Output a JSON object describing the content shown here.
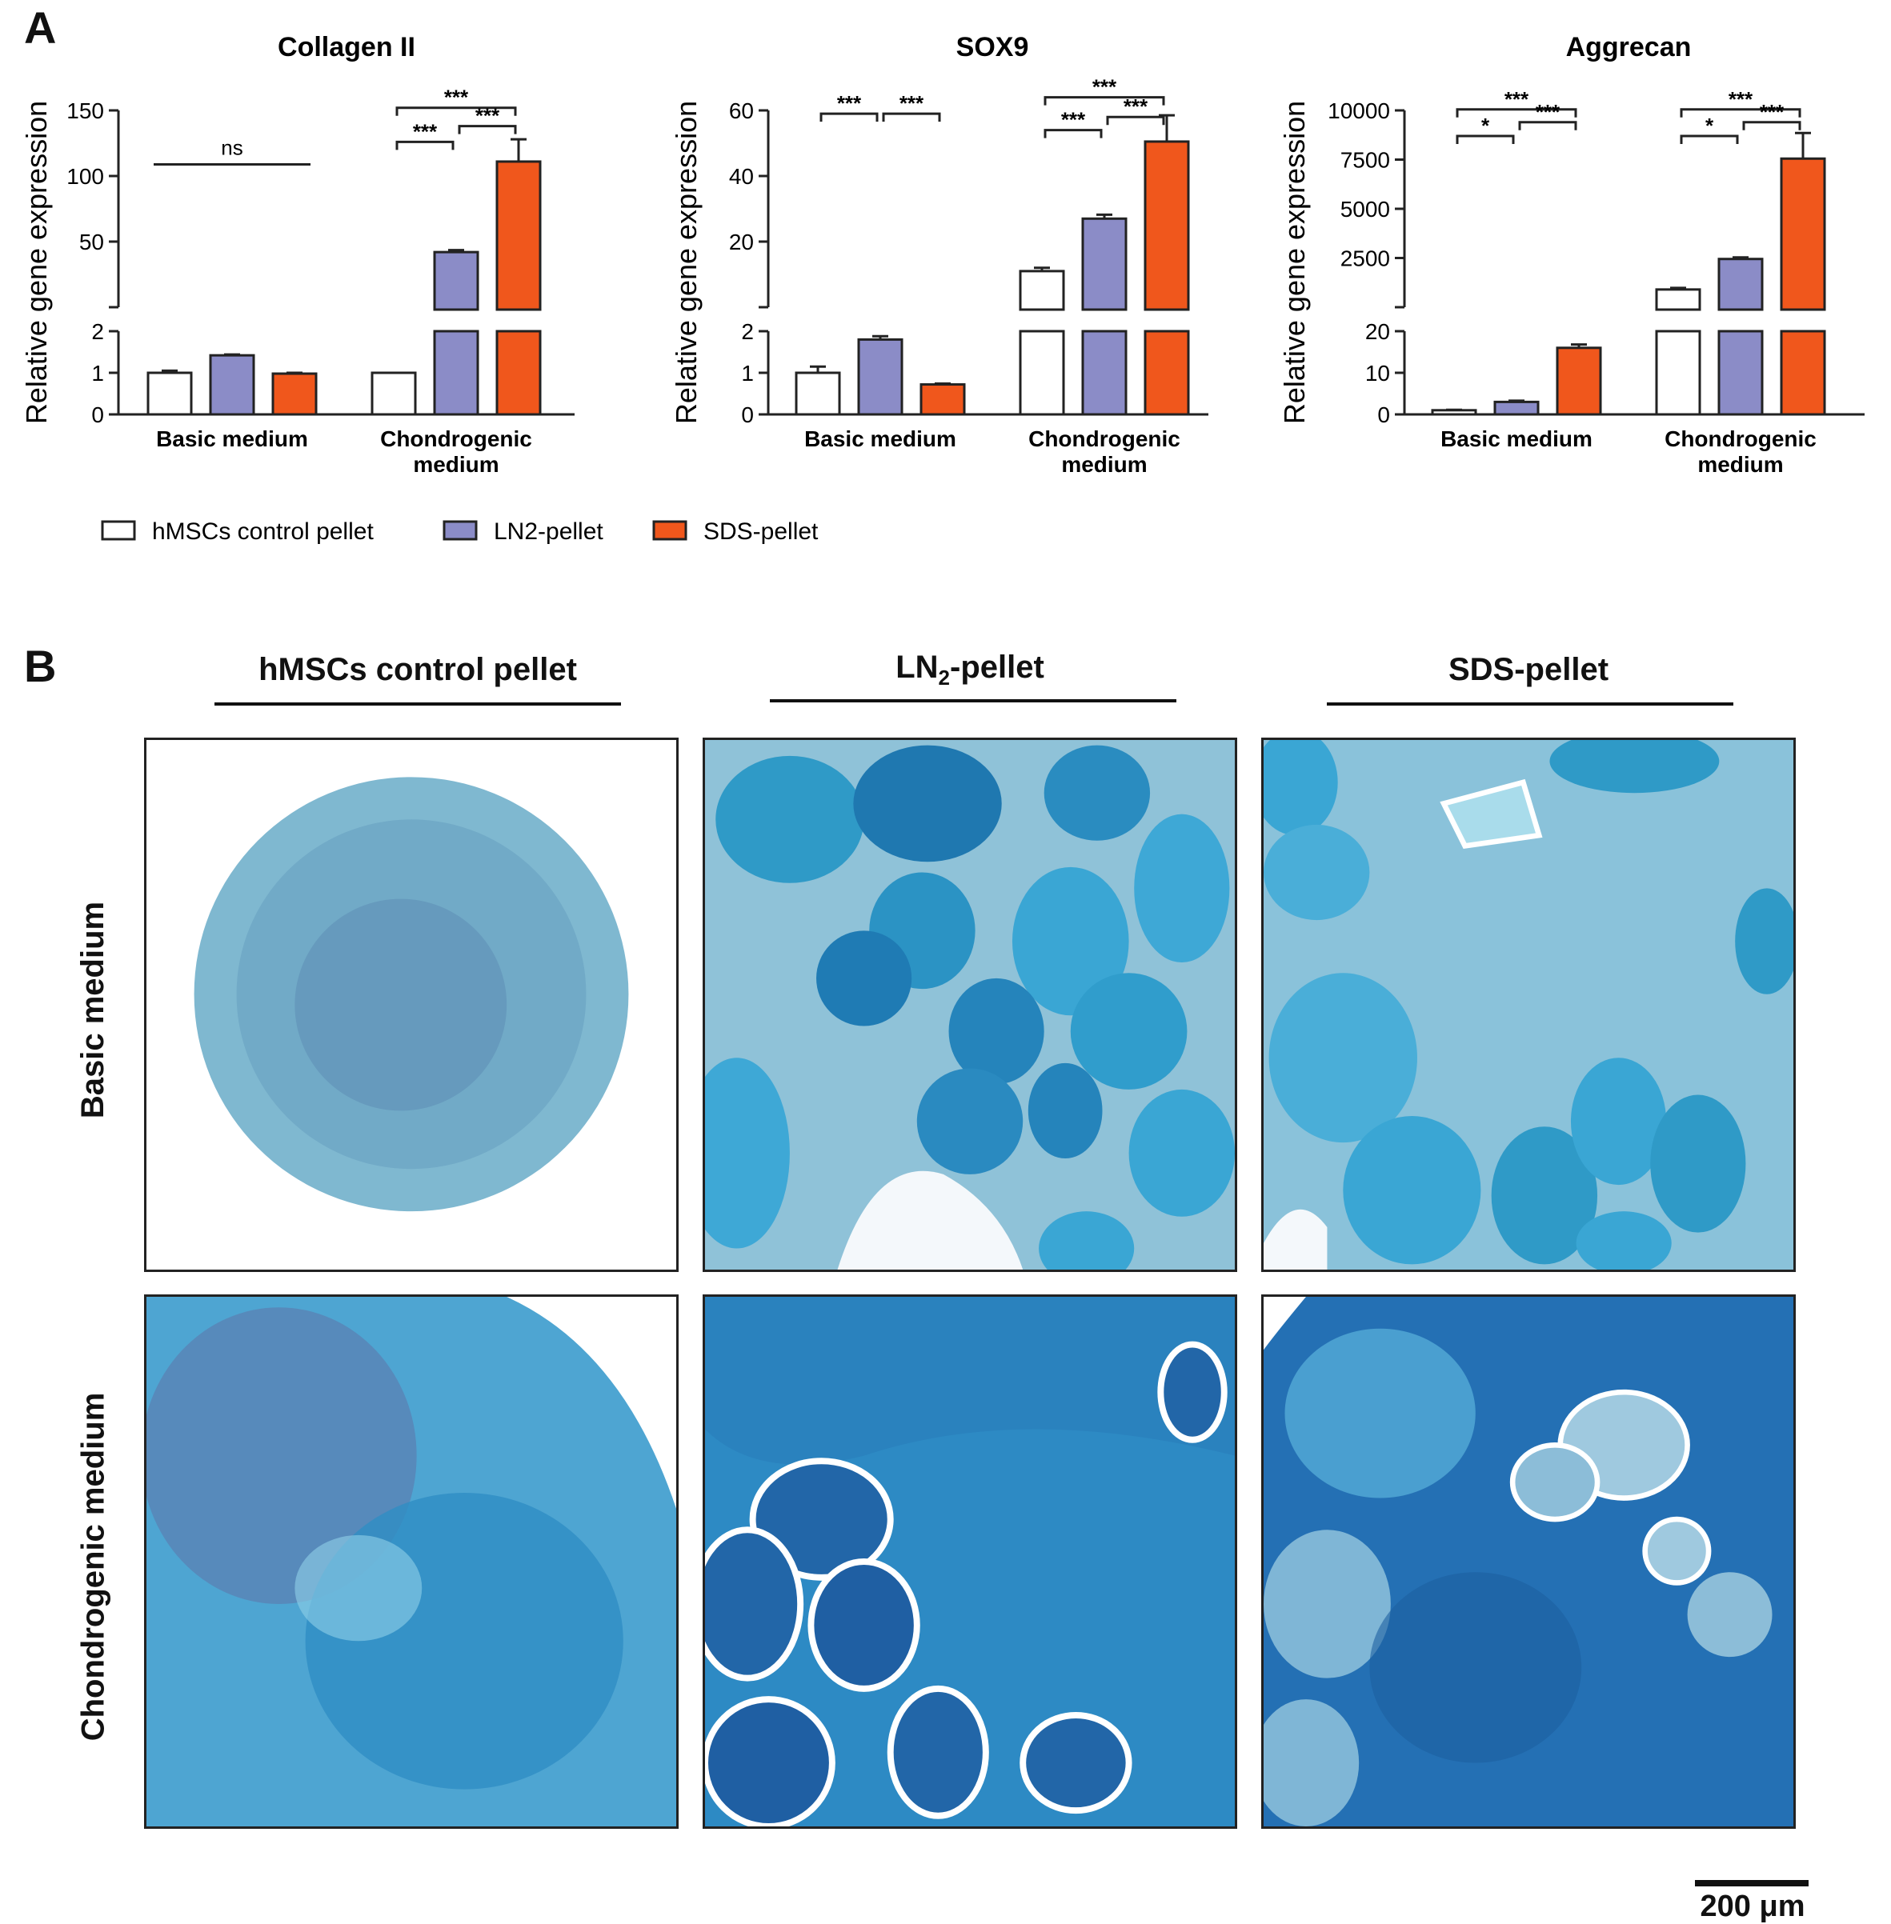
{
  "panels": {
    "a": "A",
    "b": "B"
  },
  "colors": {
    "hMSCs control pellet": "#ffffff",
    "LN2-pellet": "#8b8cc7",
    "SDS-pellet": "#f0571c"
  },
  "legend": {
    "items": [
      {
        "label": "hMSCs control pellet",
        "color": "#ffffff"
      },
      {
        "label": "LN2-pellet",
        "color": "#8b8cc7"
      },
      {
        "label": "SDS-pellet",
        "color": "#f0571c"
      }
    ]
  },
  "chart_data": [
    {
      "type": "bar",
      "title": "Collagen II",
      "ylabel": "Relative gene expression",
      "axis_break": true,
      "lower_ylim": [
        0,
        2
      ],
      "lower_ticks": [
        "0",
        "1",
        "2"
      ],
      "upper_ylim": [
        0,
        150
      ],
      "upper_ticks": [
        "50",
        "100",
        "150"
      ],
      "categories": [
        "Basic medium",
        "Chondrogenic medium"
      ],
      "series": [
        {
          "name": "hMSCs control pellet",
          "values": [
            1.0,
            1.0
          ],
          "errors": [
            0.05,
            0.0
          ]
        },
        {
          "name": "LN2-pellet",
          "values": [
            1.42,
            42
          ],
          "errors": [
            0.02,
            1.5
          ]
        },
        {
          "name": "SDS-pellet",
          "values": [
            0.98,
            111
          ],
          "errors": [
            0.02,
            17
          ]
        }
      ],
      "significance": [
        {
          "group": "Basic medium",
          "pair": [
            0,
            2
          ],
          "label": "ns",
          "style": "line",
          "y": 132
        },
        {
          "group": "Chondrogenic medium",
          "pair": [
            0,
            2
          ],
          "label": "***",
          "y": 152
        },
        {
          "group": "Chondrogenic medium",
          "pair": [
            0,
            1
          ],
          "label": "***",
          "y": 126
        },
        {
          "group": "Chondrogenic medium",
          "pair": [
            1,
            2
          ],
          "label": "***",
          "y": 138
        }
      ]
    },
    {
      "type": "bar",
      "title": "SOX9",
      "ylabel": "Relative gene expression",
      "axis_break": true,
      "lower_ylim": [
        0,
        2
      ],
      "lower_ticks": [
        "0",
        "1",
        "2"
      ],
      "upper_ylim": [
        0,
        60
      ],
      "upper_ticks": [
        "20",
        "40",
        "60"
      ],
      "categories": [
        "Basic medium",
        "Chondrogenic medium"
      ],
      "series": [
        {
          "name": "hMSCs control pellet",
          "values": [
            1.0,
            11
          ],
          "errors": [
            0.15,
            1.0
          ]
        },
        {
          "name": "LN2-pellet",
          "values": [
            1.8,
            27
          ],
          "errors": [
            0.08,
            1.2
          ]
        },
        {
          "name": "SDS-pellet",
          "values": [
            0.72,
            50.5
          ],
          "errors": [
            0.02,
            8
          ]
        }
      ],
      "significance": [
        {
          "group": "Basic medium",
          "pair": [
            0,
            1
          ],
          "label": "***",
          "y": 59
        },
        {
          "group": "Basic medium",
          "pair": [
            1,
            2
          ],
          "label": "***",
          "y": 59
        },
        {
          "group": "Chondrogenic medium",
          "pair": [
            0,
            2
          ],
          "label": "***",
          "y": 64
        },
        {
          "group": "Chondrogenic medium",
          "pair": [
            0,
            1
          ],
          "label": "***",
          "y": 54
        },
        {
          "group": "Chondrogenic medium",
          "pair": [
            1,
            2
          ],
          "label": "***",
          "y": 58
        }
      ]
    },
    {
      "type": "bar",
      "title": "Aggrecan",
      "ylabel": "Relative gene expression",
      "axis_break": true,
      "lower_ylim": [
        0,
        20
      ],
      "lower_ticks": [
        "0",
        "10",
        "20"
      ],
      "upper_ylim": [
        0,
        10000
      ],
      "upper_ticks": [
        "2500",
        "5000",
        "7500",
        "10000"
      ],
      "categories": [
        "Basic medium",
        "Chondrogenic medium"
      ],
      "series": [
        {
          "name": "hMSCs control pellet",
          "values": [
            1.0,
            900
          ],
          "errors": [
            0.1,
            80
          ]
        },
        {
          "name": "LN2-pellet",
          "values": [
            3.0,
            2450
          ],
          "errors": [
            0.3,
            80
          ]
        },
        {
          "name": "SDS-pellet",
          "values": [
            16,
            7550
          ],
          "errors": [
            0.8,
            1300
          ]
        }
      ],
      "significance": [
        {
          "group": "Basic medium",
          "pair": [
            0,
            2
          ],
          "label": "***",
          "y": 10050
        },
        {
          "group": "Basic medium",
          "pair": [
            0,
            1
          ],
          "label": "*",
          "y": 8700
        },
        {
          "group": "Basic medium",
          "pair": [
            1,
            2
          ],
          "label": "***",
          "y": 9400
        },
        {
          "group": "Chondrogenic medium",
          "pair": [
            0,
            2
          ],
          "label": "***",
          "y": 10050
        },
        {
          "group": "Chondrogenic medium",
          "pair": [
            0,
            1
          ],
          "label": "*",
          "y": 8700
        },
        {
          "group": "Chondrogenic medium",
          "pair": [
            1,
            2
          ],
          "label": "***",
          "y": 9400
        }
      ]
    }
  ],
  "histology": {
    "column_titles": [
      "hMSCs control pellet",
      "LN",
      "SDS-pellet"
    ],
    "ln2_sub": "2",
    "ln2_suffix": "-pellet",
    "row_labels": [
      "Basic medium",
      "Chondrogenic medium"
    ],
    "scale_bar": "200 μm"
  }
}
